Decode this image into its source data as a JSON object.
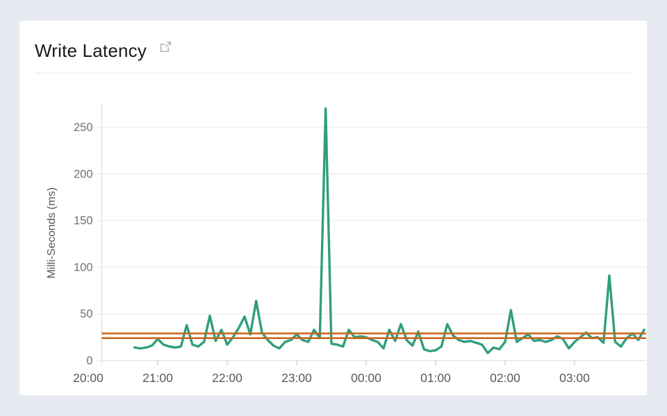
{
  "page": {
    "background_color": "#e8eaf2",
    "card_color": "#ffffff"
  },
  "header": {
    "title": "Write Latency",
    "open_icon": "external-link-icon"
  },
  "chart_data": {
    "type": "line",
    "title": "Write Latency",
    "xlabel": "",
    "ylabel": "Milli-Seconds (ms)",
    "ylim": [
      0,
      275
    ],
    "yticks": [
      0,
      50,
      100,
      150,
      200,
      250
    ],
    "xtick_labels": [
      "20:00",
      "21:00",
      "22:00",
      "23:00",
      "00:00",
      "01:00",
      "02:00",
      "03:00"
    ],
    "grid": "horizontal",
    "legend": "none",
    "colors": {
      "series_green": "#2f9e7f",
      "reference_orange": "#c9671d",
      "gridline": "#ededed",
      "axis_line": "#e0e0e0",
      "tick_mark": "#cfcfcf",
      "tick_label": "#707070",
      "x_label": "#595959"
    },
    "series": [
      {
        "name": "Write Latency",
        "color": "#2f9e7f",
        "x_start": "20:40",
        "x_step_minutes": 5,
        "values": [
          14,
          13,
          14,
          16,
          23,
          17,
          15,
          14,
          15,
          38,
          17,
          15,
          20,
          48,
          21,
          33,
          17,
          25,
          35,
          47,
          28,
          64,
          30,
          22,
          16,
          13,
          20,
          22,
          28,
          22,
          20,
          33,
          24,
          270,
          18,
          17,
          15,
          33,
          25,
          26,
          25,
          22,
          20,
          13,
          33,
          21,
          39,
          22,
          16,
          31,
          12,
          10,
          11,
          15,
          39,
          27,
          22,
          20,
          21,
          19,
          17,
          8,
          14,
          12,
          20,
          54,
          20,
          24,
          28,
          21,
          22,
          20,
          22,
          26,
          23,
          13,
          20,
          25,
          30,
          24,
          25,
          19,
          91,
          20,
          15,
          24,
          29,
          22,
          33
        ]
      }
    ],
    "reference_lines": [
      {
        "name": "upper-threshold",
        "value": 29,
        "color": "#c9671d"
      },
      {
        "name": "lower-threshold",
        "value": 24,
        "color": "#c9671d"
      }
    ]
  }
}
